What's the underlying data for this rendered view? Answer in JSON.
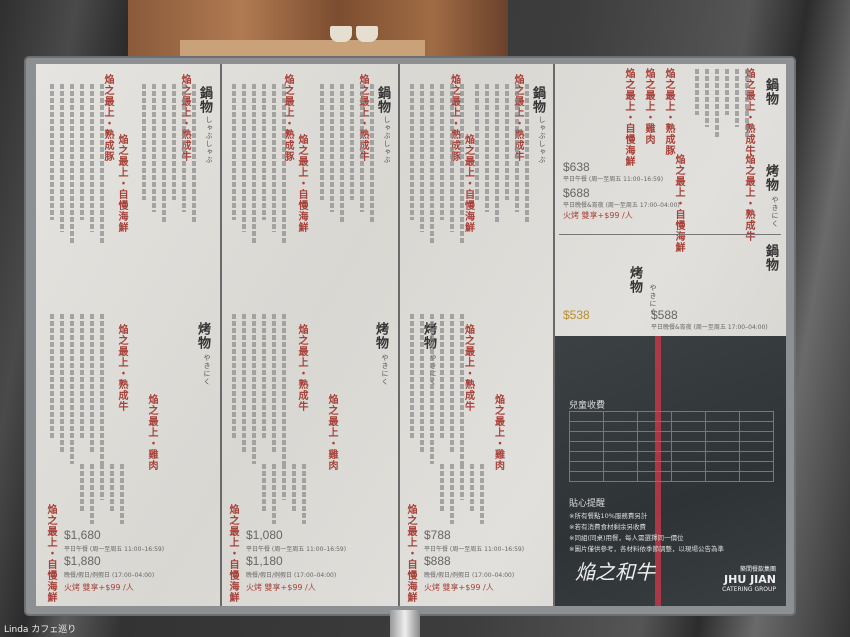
{
  "menu": {
    "hotpot_header": "鍋物",
    "hotpot_sub": "しゃぶしゃぶ",
    "grill_header": "烤物",
    "grill_sub": "やきにく",
    "titles": [
      "焔之最上・熟成牛",
      "焔之最上・熟成豚",
      "焔之最上・自慢海鮮",
      "焔之最上・雞肉"
    ],
    "panels": [
      {
        "p1": "$1,680",
        "n1": "平日午餐 (周一至周五 11:00–16:59)",
        "p2": "$1,880",
        "n2": "晚餐/假日/例假日 (17:00–04:00)",
        "addon": "火烤 雙享+$99 /人"
      },
      {
        "p1": "$1,080",
        "n1": "平日午餐 (周一至周五 11:00–16:59)",
        "p2": "$1,180",
        "n2": "晚餐/假日/例假日 (17:00–04:00)",
        "addon": "火烤 雙享+$99 /人"
      },
      {
        "p1": "$788",
        "n1": "平日午餐 (周一至周五 11:00–16:59)",
        "p2": "$888",
        "n2": "晚餐/假日/例假日 (17:00–04:00)",
        "addon": "火烤 雙享+$99 /人"
      }
    ],
    "right": {
      "p1": "$638",
      "n1": "平日午餐 (周一至周五 11:00–16:59)",
      "p2": "$688",
      "n2": "平日晚餐&宵夜 (周一至周五 17:00–04:00)",
      "addon": "火烤 雙享+$99 /人",
      "p3": "$538",
      "p4": "$588",
      "n4": "平日晚餐&宵夜 (周一至周五 17:00–04:00)"
    },
    "info": {
      "kids": "兒童收費",
      "reminder": "貼心提醒",
      "notes": [
        "※所有餐點10%服務費另計",
        "※若有消費食材剩余另收費",
        "※同組(同桌)用餐，每人需選擇同一價位",
        "※圖片僅供參考，各材料依季節調整，以現場公告為準"
      ],
      "logo": "焔之和牛",
      "group": "築間餐飲集團",
      "group_en": "JHU JIAN",
      "group_sub": "CATERING GROUP"
    }
  },
  "watermark": "Linda カフェ巡り"
}
